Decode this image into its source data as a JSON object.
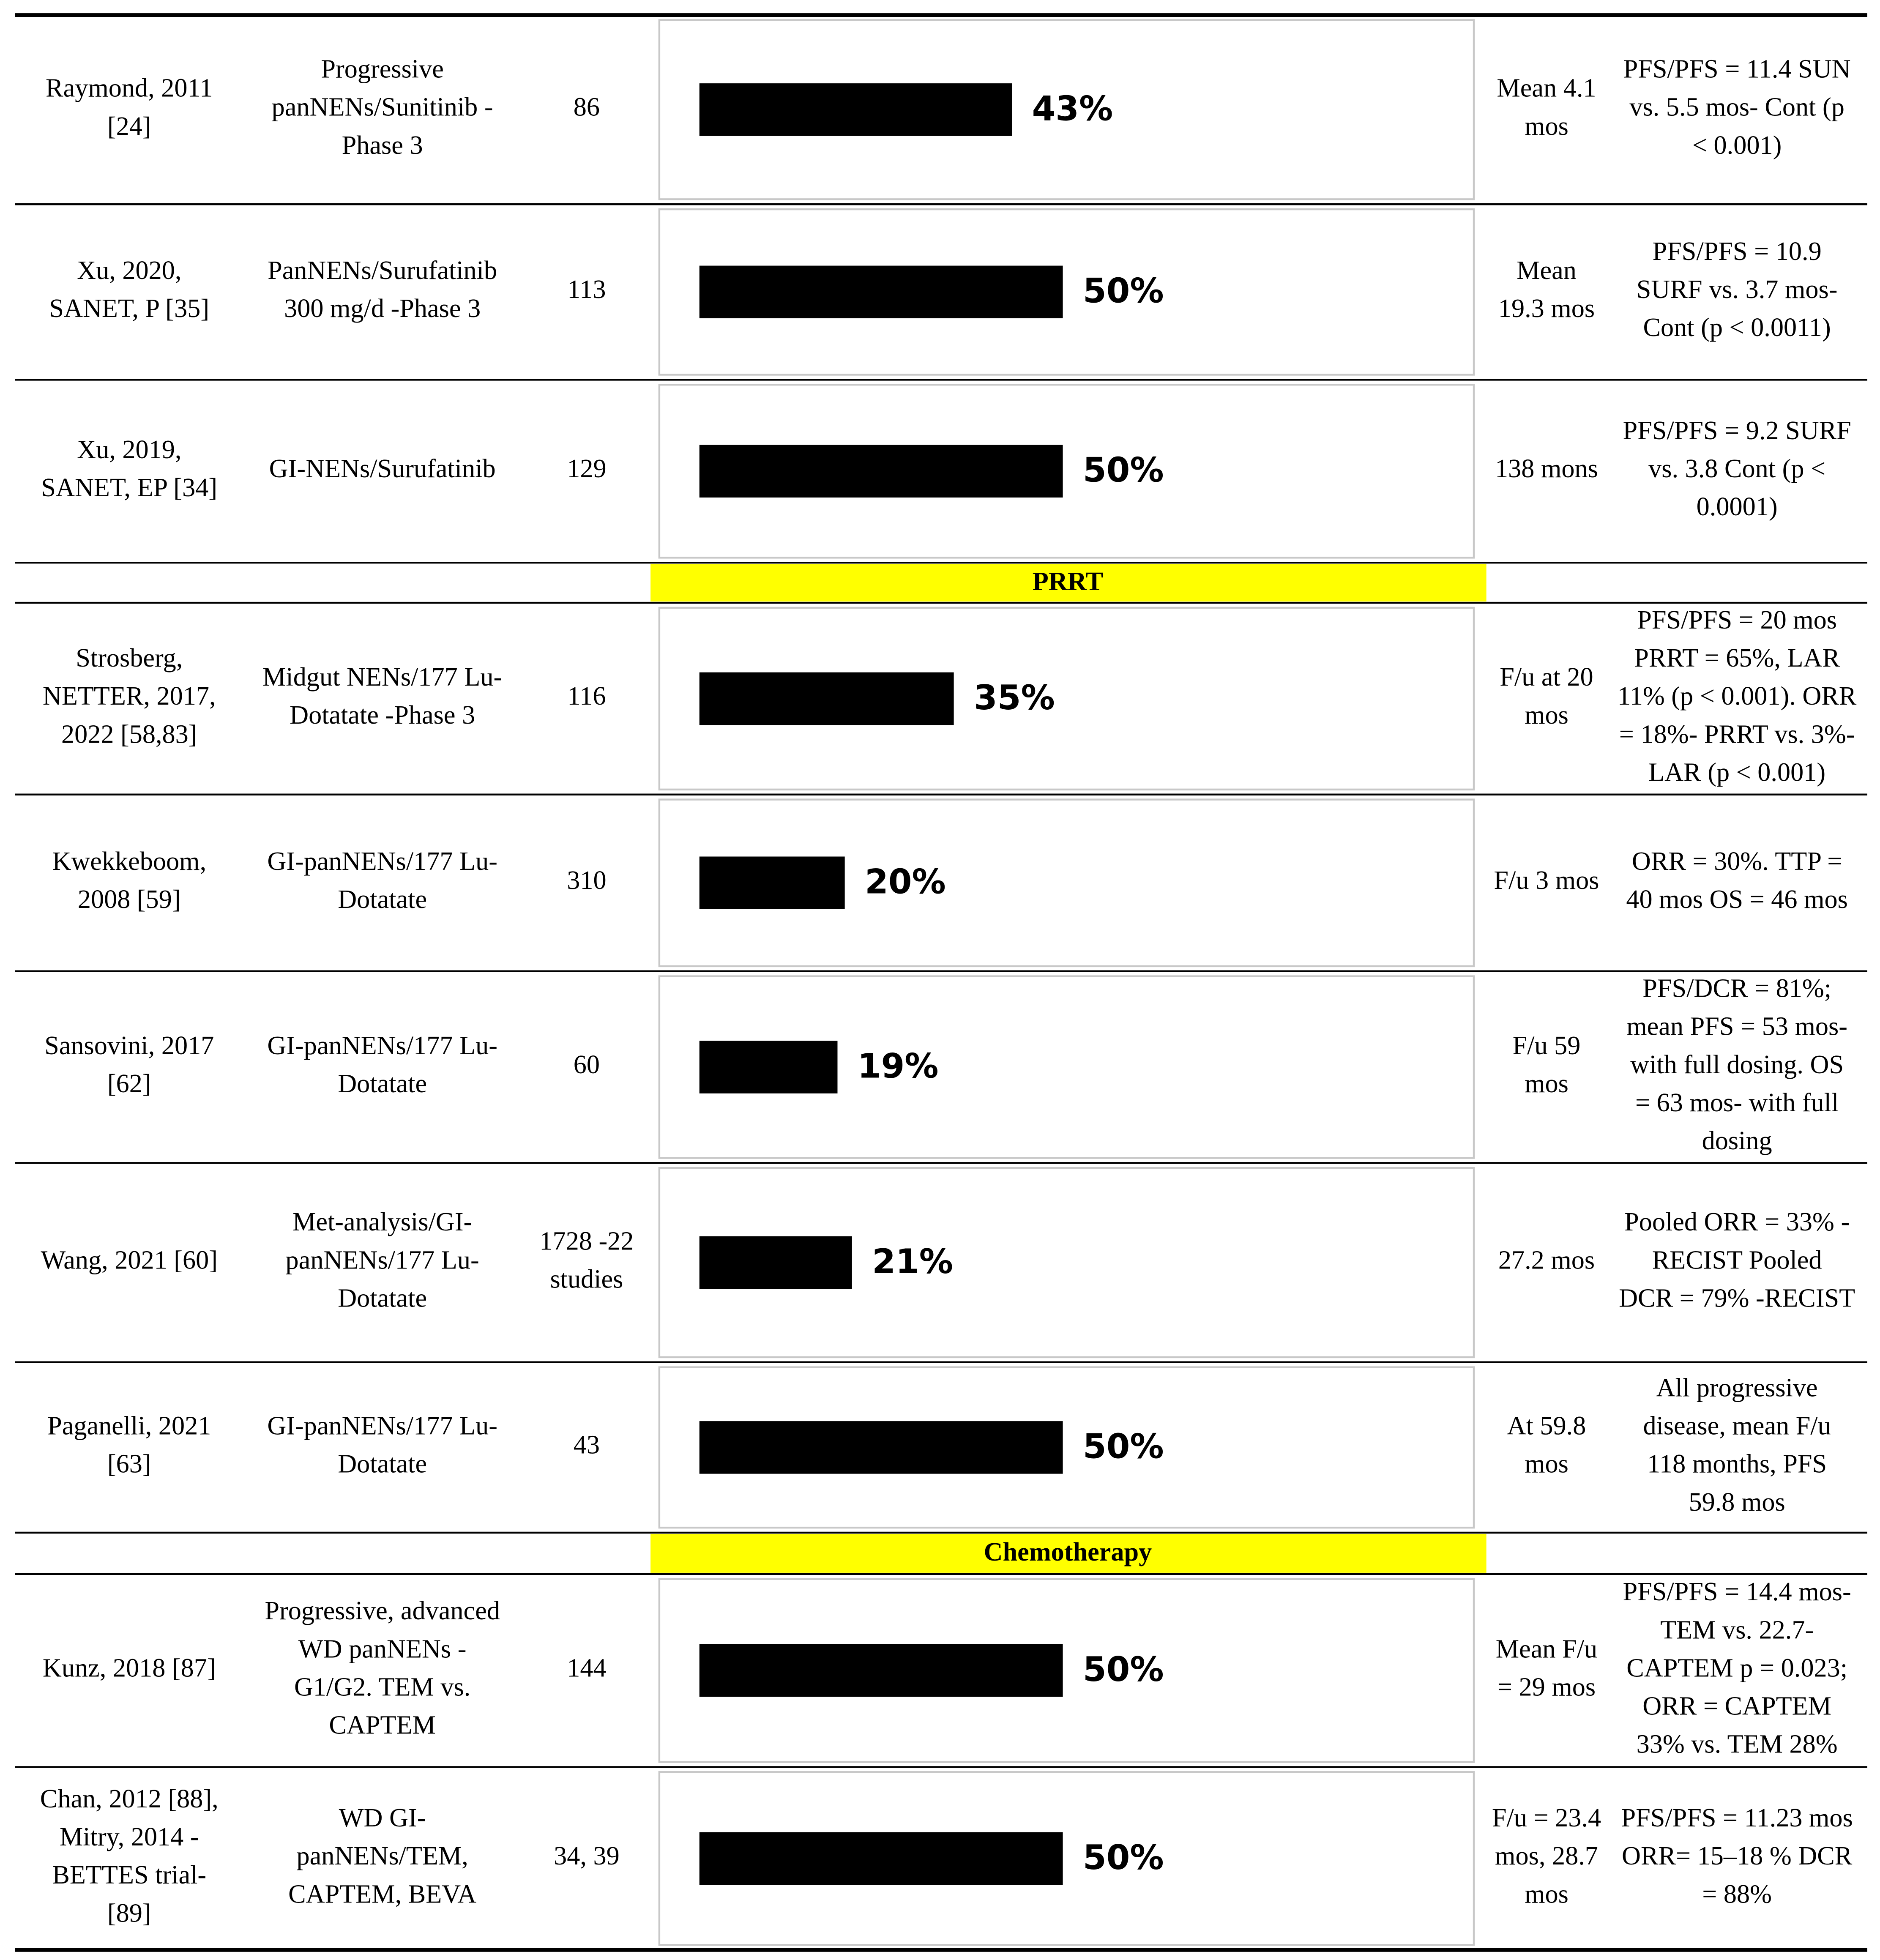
{
  "sections": [
    {
      "rows": [
        {
          "author": [
            "Raymond, 2011",
            "[24]"
          ],
          "design": [
            "Progressive",
            "panNENs/Sunitinib -",
            "Phase 3"
          ],
          "n": [
            "86"
          ],
          "bar": {
            "value": 43,
            "label": "43%"
          },
          "followup": [
            "Mean 4.1",
            "mos"
          ],
          "outcome": [
            "PFS/PFS = 11.4 SUN",
            "vs. 5.5 mos- Cont (p",
            "< 0.001)"
          ]
        },
        {
          "author": [
            "Xu, 2020,",
            "SANET, P [35]"
          ],
          "design": [
            "PanNENs/Surufatinib",
            "300 mg/d -Phase 3"
          ],
          "n": [
            "113"
          ],
          "bar": {
            "value": 50,
            "label": "50%"
          },
          "followup": [
            "Mean",
            "19.3 mos"
          ],
          "outcome": [
            "PFS/PFS = 10.9",
            "SURF vs. 3.7 mos-",
            "Cont (p < 0.0011)"
          ]
        },
        {
          "author": [
            "Xu, 2019,",
            "SANET, EP [34]"
          ],
          "design": [
            "GI-NENs/Surufatinib"
          ],
          "n": [
            "129"
          ],
          "bar": {
            "value": 50,
            "label": "50%"
          },
          "followup": [
            "138 mons"
          ],
          "outcome": [
            "PFS/PFS = 9.2 SURF",
            "vs. 3.8 Cont (p <",
            "0.0001)"
          ]
        }
      ]
    },
    {
      "heading": "PRRT",
      "rows": [
        {
          "author": [
            "Strosberg,",
            "NETTER, 2017,",
            "2022 [58,83]"
          ],
          "design": [
            "Midgut NENs/177 Lu-",
            "Dotatate -Phase 3"
          ],
          "n": [
            "116"
          ],
          "bar": {
            "value": 35,
            "label": "35%"
          },
          "followup": [
            "F/u at 20",
            "mos"
          ],
          "outcome": [
            "PFS/PFS = 20 mos",
            "PRRT = 65%, LAR",
            "11% (p < 0.001). ORR",
            "= 18%- PRRT vs. 3%-",
            "LAR (p < 0.001)"
          ]
        },
        {
          "author": [
            "Kwekkeboom,",
            "2008 [59]"
          ],
          "design": [
            "GI-panNENs/177 Lu-",
            "Dotatate"
          ],
          "n": [
            "310"
          ],
          "bar": {
            "value": 20,
            "label": "20%"
          },
          "followup": [
            "F/u 3 mos"
          ],
          "outcome": [
            "ORR = 30%. TTP =",
            "40 mos OS = 46 mos"
          ]
        },
        {
          "author": [
            "Sansovini, 2017",
            "[62]"
          ],
          "design": [
            "GI-panNENs/177 Lu-",
            "Dotatate"
          ],
          "n": [
            "60"
          ],
          "bar": {
            "value": 19,
            "label": "19%"
          },
          "followup": [
            "F/u 59",
            "mos"
          ],
          "outcome": [
            "PFS/DCR = 81%;",
            "mean PFS = 53 mos-",
            "with full dosing. OS",
            "= 63 mos- with full",
            "dosing"
          ]
        },
        {
          "author": [
            "Wang, 2021 [60]"
          ],
          "design": [
            "Met-analysis/GI-",
            "panNENs/177 Lu-",
            "Dotatate"
          ],
          "n": [
            "1728 -22",
            "studies"
          ],
          "bar": {
            "value": 21,
            "label": "21%"
          },
          "followup": [
            "27.2 mos"
          ],
          "outcome": [
            "Pooled ORR = 33% -",
            "RECIST Pooled",
            "DCR = 79% -RECIST"
          ]
        },
        {
          "author": [
            "Paganelli, 2021",
            "[63]"
          ],
          "design": [
            "GI-panNENs/177 Lu-",
            "Dotatate"
          ],
          "n": [
            "43"
          ],
          "bar": {
            "value": 50,
            "label": "50%"
          },
          "followup": [
            "At 59.8",
            "mos"
          ],
          "outcome": [
            "All progressive",
            "disease, mean F/u",
            "118 months, PFS",
            "59.8 mos"
          ]
        }
      ]
    },
    {
      "heading": "Chemotherapy",
      "rows": [
        {
          "author": [
            "Kunz, 2018 [87]"
          ],
          "design": [
            "Progressive, advanced",
            "WD panNENs -",
            "G1/G2. TEM vs.",
            "CAPTEM"
          ],
          "n": [
            "144"
          ],
          "bar": {
            "value": 50,
            "label": "50%"
          },
          "followup": [
            "Mean F/u",
            "= 29 mos"
          ],
          "outcome": [
            "PFS/PFS = 14.4 mos-",
            "TEM vs. 22.7-",
            "CAPTEM p = 0.023;",
            "ORR = CAPTEM",
            "33% vs. TEM 28%"
          ]
        },
        {
          "author": [
            "Chan, 2012 [88],",
            "Mitry, 2014 -",
            "BETTES trial-",
            "[89]"
          ],
          "design": [
            "WD GI-",
            "panNENs/TEM,",
            "CAPTEM, BEVA"
          ],
          "n": [
            "34, 39"
          ],
          "bar": {
            "value": 50,
            "label": "50%"
          },
          "followup": [
            "F/u = 23.4",
            "mos, 28.7",
            "mos"
          ],
          "outcome": [
            "PFS/PFS = 11.23 mos",
            "ORR= 15–18 % DCR",
            "= 88%"
          ]
        }
      ]
    }
  ]
}
